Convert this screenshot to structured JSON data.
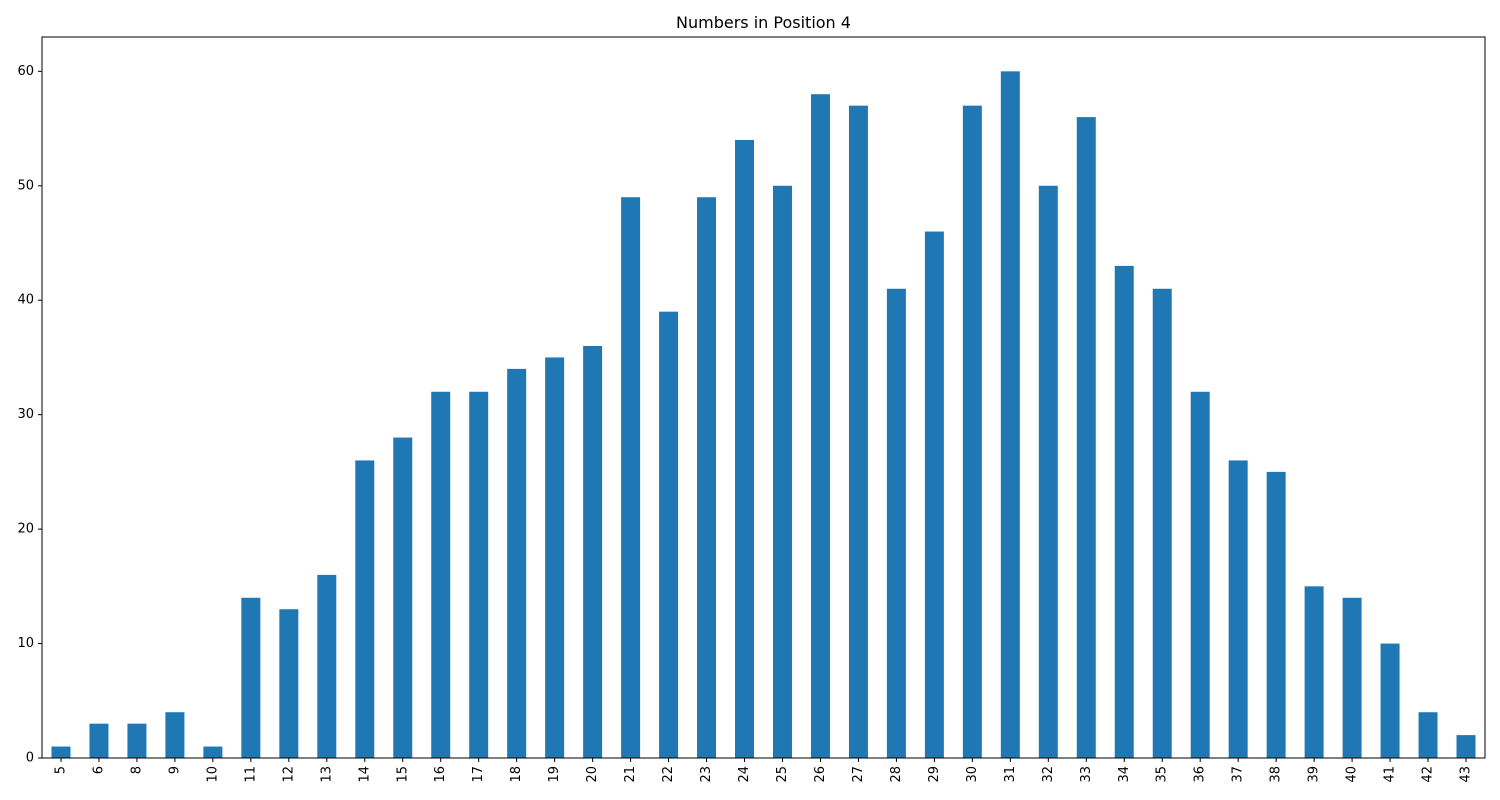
{
  "chart_data": {
    "type": "bar",
    "title": "Numbers in Position 4",
    "xlabel": "",
    "ylabel": "",
    "categories": [
      "5",
      "6",
      "8",
      "9",
      "10",
      "11",
      "12",
      "13",
      "14",
      "15",
      "16",
      "17",
      "18",
      "19",
      "20",
      "21",
      "22",
      "23",
      "24",
      "25",
      "26",
      "27",
      "28",
      "29",
      "30",
      "31",
      "32",
      "33",
      "34",
      "35",
      "36",
      "37",
      "38",
      "39",
      "40",
      "41",
      "42",
      "43"
    ],
    "values": [
      1,
      3,
      3,
      4,
      1,
      14,
      13,
      16,
      26,
      28,
      32,
      32,
      34,
      35,
      36,
      49,
      39,
      49,
      54,
      50,
      58,
      57,
      41,
      46,
      57,
      60,
      50,
      56,
      43,
      41,
      32,
      26,
      25,
      15,
      14,
      10,
      4,
      2
    ],
    "ylim": [
      0,
      63
    ],
    "yticks": [
      0,
      10,
      20,
      30,
      40,
      50,
      60
    ],
    "grid": false,
    "legend": "none",
    "bar_color": "#1f77b4"
  }
}
